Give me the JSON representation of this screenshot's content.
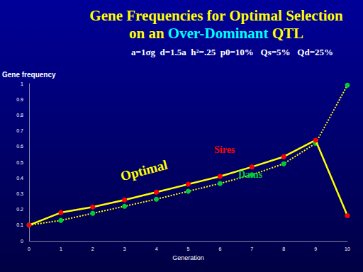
{
  "chart_data": {
    "type": "line",
    "title": "Gene Frequencies for Optimal Selection\non an Over-Dominant QTL",
    "title_highlight": "Over-Dominant",
    "subtitle": "a=1σg  d=1.5a  h²=.25  p0=10%   Qs=5%   Qd=25%",
    "x_label": "Generation",
    "y_label": "Gene frequency",
    "annotations": [
      {
        "text": "Optimal",
        "color": "#ffff00"
      },
      {
        "text": "Sires",
        "color": "#ff0000"
      },
      {
        "text": "Dams",
        "color": "#00cc33"
      }
    ],
    "x": [
      0,
      1,
      2,
      3,
      4,
      5,
      6,
      7,
      8,
      9,
      10
    ],
    "xlim": [
      0,
      10
    ],
    "xticks": [
      0,
      1,
      2,
      3,
      4,
      5,
      6,
      7,
      8,
      9,
      10
    ],
    "ylim": [
      0,
      1
    ],
    "yticks": [
      0,
      0.1,
      0.2,
      0.3,
      0.4,
      0.5,
      0.6,
      0.7,
      0.8,
      0.9,
      1
    ],
    "grid": false,
    "series": [
      {
        "name": "Sires",
        "color": "#ff0000",
        "marker": "circle",
        "line_style": "solid",
        "values": [
          0.1,
          0.18,
          0.215,
          0.26,
          0.31,
          0.36,
          0.41,
          0.47,
          0.535,
          0.64,
          0.16
        ]
      },
      {
        "name": "Dams",
        "color": "#00cc33",
        "marker": "circle",
        "line_style": "dotted",
        "values": [
          0.1,
          0.13,
          0.175,
          0.22,
          0.265,
          0.315,
          0.365,
          0.42,
          0.49,
          0.62,
          0.99
        ]
      }
    ]
  }
}
